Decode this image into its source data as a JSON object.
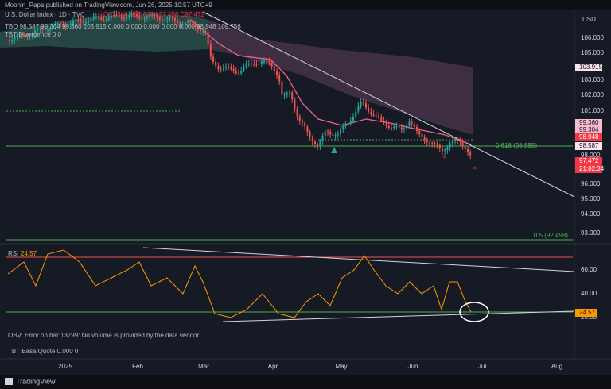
{
  "header": {
    "publisher": "Moonin_Papa published on TradingView.com, Jun 26, 2025 10:57 UTC+9"
  },
  "legend": {
    "symbol": "U.S. Dollar Index · 1D · TVC",
    "ohlc": "O97.546 H97.626 L97.456 C97.472",
    "tbo": "TBO 98.587 99.304 99.360 103.915 0.000 0.000 0.000 0.000 0.000 98.948 109.756",
    "tbt": "TBT Divergence 0 0"
  },
  "price_axis": {
    "currency": "USD",
    "labels": [
      "106.000",
      "105.000",
      "103.000",
      "102.000",
      "101.000",
      "98.000",
      "96.000",
      "95.000",
      "94.000",
      "93.000"
    ],
    "badges": [
      "103.915",
      "99.360",
      "99.304",
      "98.948",
      "98.587",
      "97.472",
      "21:02:34"
    ]
  },
  "fib": [
    "0.618 (98.555)",
    "0.5 (92.498)"
  ],
  "rsi": {
    "title": "RSI",
    "value": "24.57",
    "labels": [
      "60.00",
      "40.00",
      "20.00"
    ],
    "badge": "24.57"
  },
  "obv": "OBV: Error on bar 13799: No volume is provided by the data vendor.",
  "tbt_base": "TBT Base/Quote 0.000 0",
  "time_axis": [
    "2025",
    "Feb",
    "Mar",
    "Apr",
    "May",
    "Jun",
    "Jul",
    "Aug"
  ],
  "footer": "TradingView"
}
